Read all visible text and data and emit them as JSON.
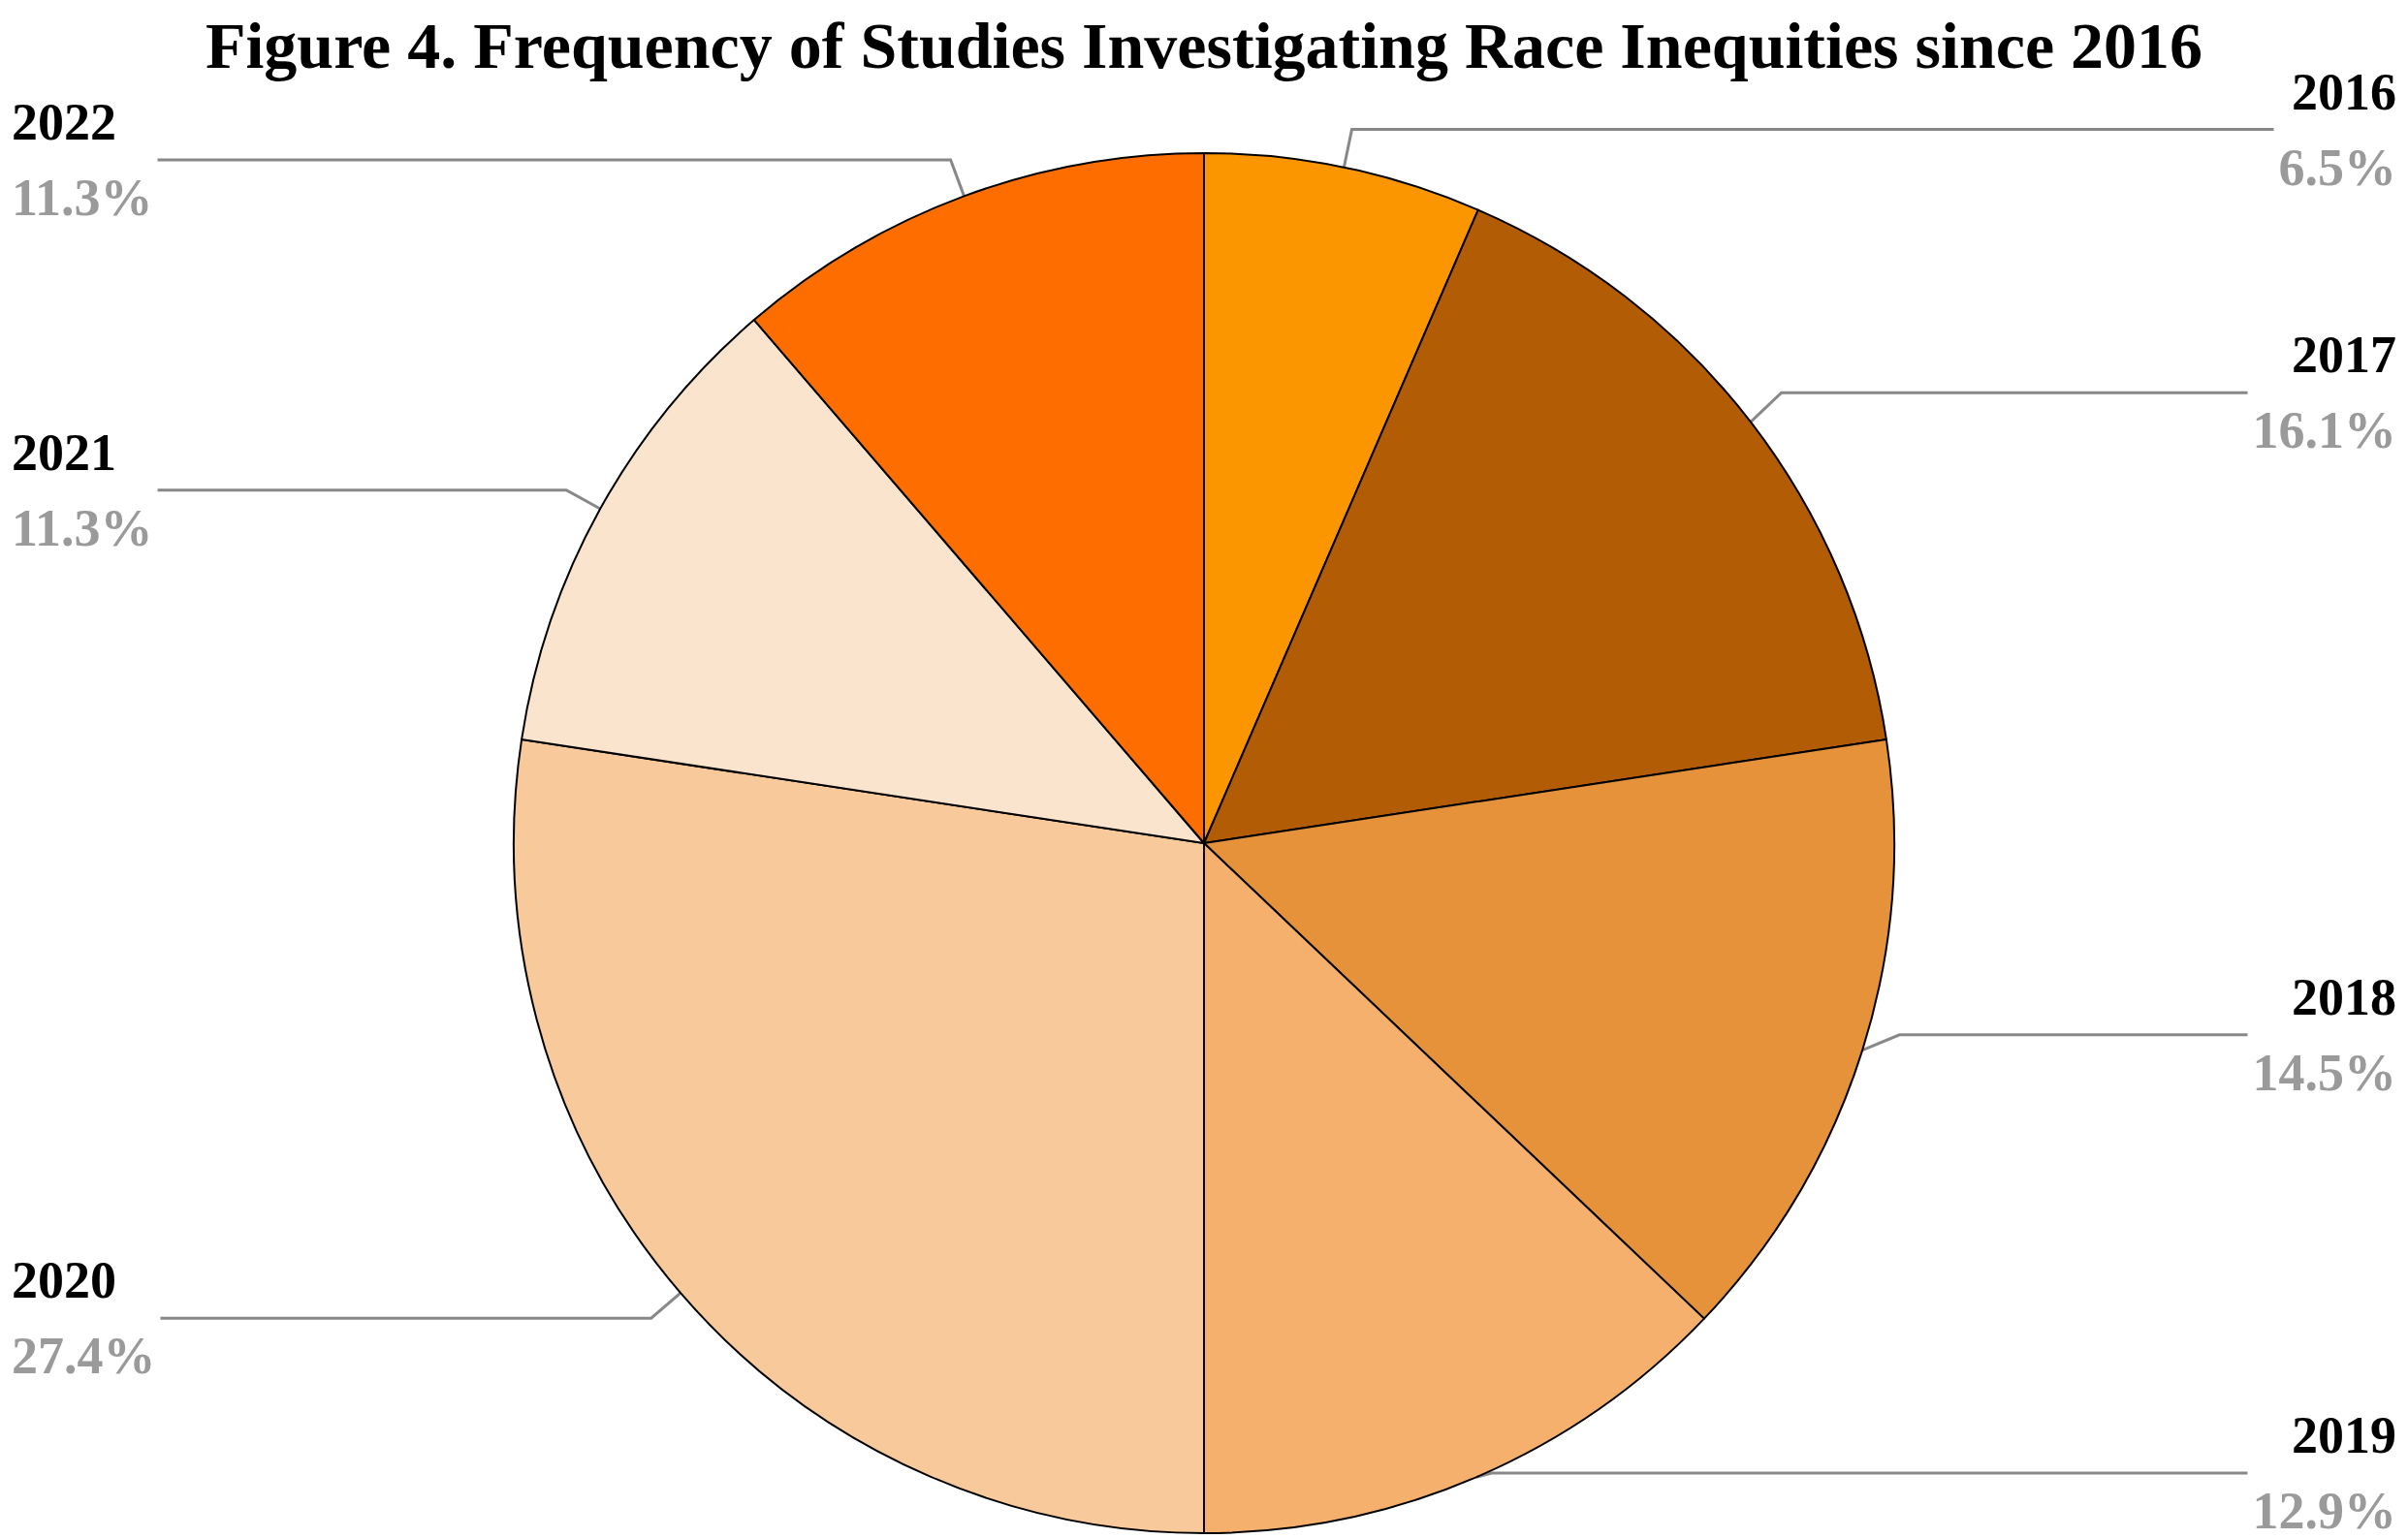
{
  "chart_data": {
    "type": "pie",
    "title": "Figure 4. Frequency of Studies Investigating Race Inequities since 2016",
    "categories": [
      "2016",
      "2017",
      "2018",
      "2019",
      "2020",
      "2021",
      "2022"
    ],
    "values": [
      6.5,
      16.1,
      14.5,
      12.9,
      27.4,
      11.3,
      11.3
    ],
    "value_labels": [
      "6.5%",
      "16.1%",
      "14.5%",
      "12.9%",
      "27.4%",
      "11.3%",
      "11.3%"
    ],
    "colors": [
      "#fb9600",
      "#b35c06",
      "#e5923a",
      "#f5b06d",
      "#f7c99b",
      "#fbe4cd",
      "#fd6d00"
    ],
    "legend": false
  }
}
